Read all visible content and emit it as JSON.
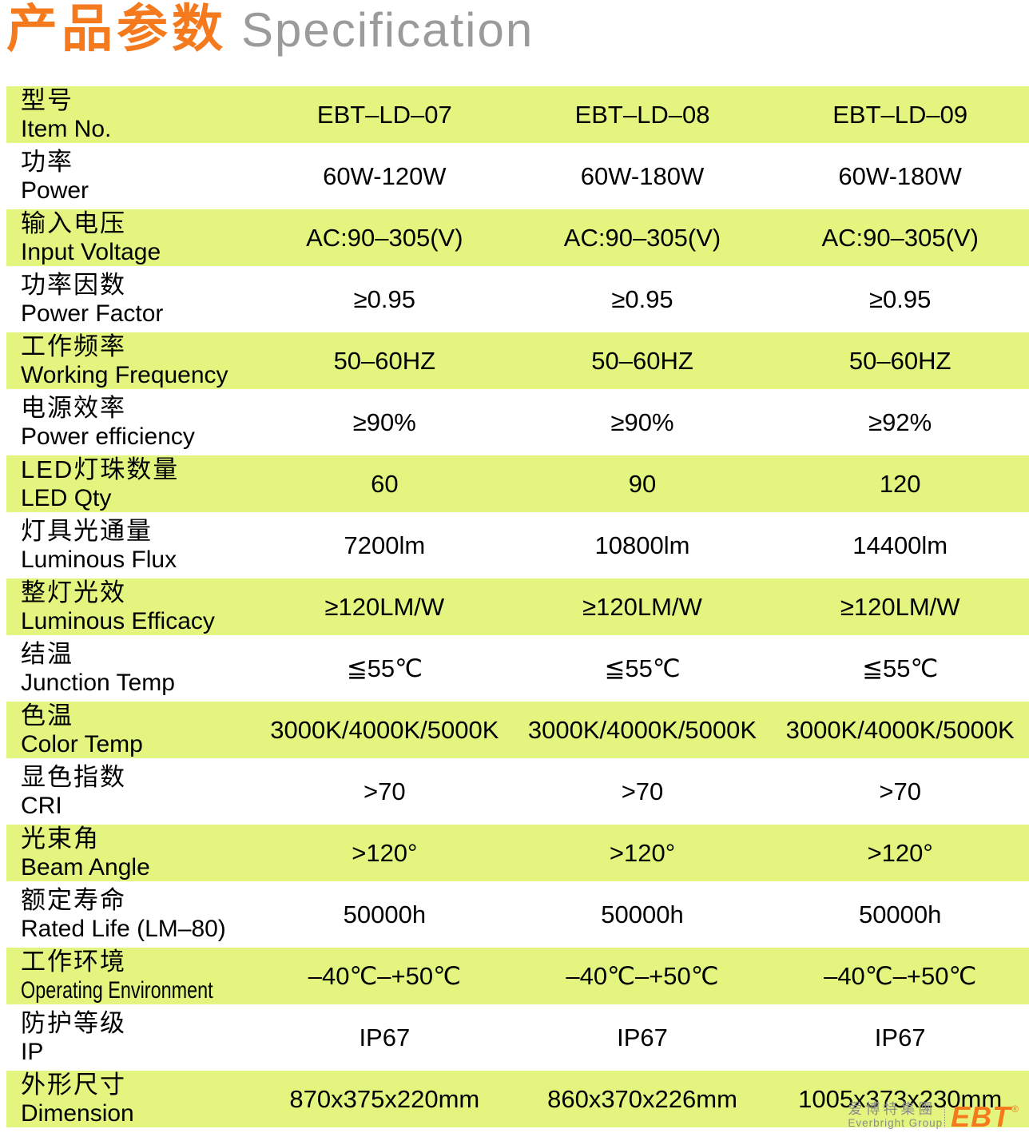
{
  "title": {
    "zh": "产品参数",
    "en": "Specification"
  },
  "table": {
    "rows": [
      {
        "zh": "型号",
        "en": "Item No.",
        "values": [
          "EBT–LD–07",
          "EBT–LD–08",
          "EBT–LD–09"
        ]
      },
      {
        "zh": "功率",
        "en": "Power",
        "values": [
          "60W-120W",
          "60W-180W",
          "60W-180W"
        ]
      },
      {
        "zh": "输入电压",
        "en": "Input Voltage",
        "values": [
          "AC:90–305(V)",
          "AC:90–305(V)",
          "AC:90–305(V)"
        ]
      },
      {
        "zh": "功率因数",
        "en": "Power Factor",
        "values": [
          "≥0.95",
          "≥0.95",
          "≥0.95"
        ]
      },
      {
        "zh": "工作频率",
        "en": "Working Frequency",
        "values": [
          "50–60HZ",
          "50–60HZ",
          "50–60HZ"
        ]
      },
      {
        "zh": "电源效率",
        "en": "Power efficiency",
        "values": [
          "≥90%",
          "≥90%",
          "≥92%"
        ]
      },
      {
        "zh": "LED灯珠数量",
        "en": "LED Qty",
        "values": [
          "60",
          "90",
          "120"
        ]
      },
      {
        "zh": "灯具光通量",
        "en": "Luminous Flux",
        "values": [
          "7200lm",
          "10800lm",
          "14400lm"
        ]
      },
      {
        "zh": "整灯光效",
        "en": "Luminous Efficacy",
        "values": [
          "≥120LM/W",
          "≥120LM/W",
          "≥120LM/W"
        ]
      },
      {
        "zh": "结温",
        "en": "Junction Temp",
        "values": [
          "≦55℃",
          "≦55℃",
          "≦55℃"
        ]
      },
      {
        "zh": "色温",
        "en": "Color Temp",
        "values": [
          "3000K/4000K/5000K",
          "3000K/4000K/5000K",
          "3000K/4000K/5000K"
        ]
      },
      {
        "zh": "显色指数",
        "en": "CRI",
        "values": [
          ">70",
          ">70",
          ">70"
        ]
      },
      {
        "zh": "光束角",
        "en": "Beam Angle",
        "values": [
          ">120°",
          ">120°",
          ">120°"
        ]
      },
      {
        "zh": "额定寿命",
        "en": "Rated Life (LM–80)",
        "values": [
          "50000h",
          "50000h",
          "50000h"
        ]
      },
      {
        "zh": "工作环境",
        "en": "Operating Environment",
        "values": [
          "–40℃–+50℃",
          "–40℃–+50℃",
          "–40℃–+50℃"
        ]
      },
      {
        "zh": "防护等级",
        "en": "IP",
        "values": [
          "IP67",
          "IP67",
          "IP67"
        ]
      },
      {
        "zh": "外形尺寸",
        "en": "Dimension",
        "values": [
          "870x375x220mm",
          "860x370x226mm",
          "1005x373x230mm"
        ]
      }
    ]
  },
  "logo": {
    "zh": "爱博特集團",
    "en": "Everbright Group",
    "abbr": "EBT",
    "reg": "®"
  },
  "colors": {
    "accent_orange": "#f5791d",
    "title_gray": "#9b9b9b",
    "row_green": "#e3f57e",
    "logo_gray": "#8c8c8c"
  }
}
